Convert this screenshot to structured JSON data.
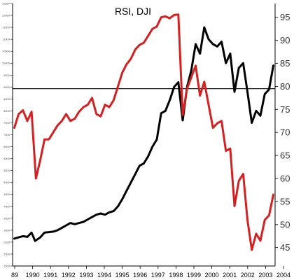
{
  "chart_data": {
    "type": "line",
    "title": "RSI, DJI",
    "x_ticks": [
      "89",
      "1990",
      "1991",
      "1992",
      "1993",
      "1994",
      "1995",
      "1996",
      "1997",
      "1998",
      "1999",
      "2000",
      "2001",
      "2002",
      "2003",
      "2004"
    ],
    "left_axis": {
      "range": [
        1500,
        12500
      ],
      "ticks": [
        1500,
        2000,
        2500,
        3000,
        3500,
        4000,
        4500,
        5000,
        5500,
        6000,
        6500,
        7000,
        7500,
        8000,
        8500,
        9000,
        9500,
        10000,
        10500,
        11000,
        11500,
        12000,
        12500
      ]
    },
    "right_axis": {
      "range": [
        41,
        98
      ],
      "ticks": [
        45,
        50,
        55,
        60,
        65,
        70,
        75,
        80,
        85,
        90,
        95
      ]
    },
    "reference_line": {
      "axis": "right",
      "value": 79.5
    },
    "series": [
      {
        "axis": "left",
        "color": "#000000",
        "points": [
          [
            1989.0,
            2650
          ],
          [
            1989.25,
            2700
          ],
          [
            1989.5,
            2750
          ],
          [
            1989.75,
            2720
          ],
          [
            1990.0,
            2900
          ],
          [
            1990.2,
            2550
          ],
          [
            1990.5,
            2700
          ],
          [
            1990.75,
            2900
          ],
          [
            1991.0,
            2920
          ],
          [
            1991.25,
            2940
          ],
          [
            1991.5,
            3000
          ],
          [
            1991.75,
            3100
          ],
          [
            1992.0,
            3200
          ],
          [
            1992.25,
            3300
          ],
          [
            1992.5,
            3250
          ],
          [
            1992.75,
            3300
          ],
          [
            1993.0,
            3350
          ],
          [
            1993.25,
            3450
          ],
          [
            1993.5,
            3550
          ],
          [
            1993.75,
            3650
          ],
          [
            1994.0,
            3700
          ],
          [
            1994.25,
            3650
          ],
          [
            1994.5,
            3750
          ],
          [
            1994.75,
            3800
          ],
          [
            1995.0,
            4000
          ],
          [
            1995.25,
            4300
          ],
          [
            1995.5,
            4650
          ],
          [
            1995.75,
            5000
          ],
          [
            1996.0,
            5350
          ],
          [
            1996.25,
            5700
          ],
          [
            1996.5,
            5800
          ],
          [
            1996.75,
            6100
          ],
          [
            1997.0,
            6500
          ],
          [
            1997.25,
            6800
          ],
          [
            1997.5,
            7900
          ],
          [
            1997.75,
            8000
          ],
          [
            1998.0,
            8450
          ],
          [
            1998.25,
            9000
          ],
          [
            1998.5,
            9200
          ],
          [
            1998.75,
            7600
          ],
          [
            1999.0,
            9000
          ],
          [
            1999.25,
            9700
          ],
          [
            1999.5,
            10800
          ],
          [
            1999.75,
            10400
          ],
          [
            2000.0,
            11500
          ],
          [
            2000.25,
            11000
          ],
          [
            2000.5,
            10800
          ],
          [
            2000.75,
            10700
          ],
          [
            2001.0,
            10900
          ],
          [
            2001.25,
            10000
          ],
          [
            2001.5,
            10400
          ],
          [
            2001.75,
            8800
          ],
          [
            2002.0,
            9800
          ],
          [
            2002.25,
            10000
          ],
          [
            2002.5,
            8800
          ],
          [
            2002.75,
            7500
          ],
          [
            2003.0,
            8000
          ],
          [
            2003.25,
            7800
          ],
          [
            2003.5,
            8700
          ],
          [
            2003.75,
            8900
          ],
          [
            2004.0,
            9900
          ]
        ]
      },
      {
        "axis": "right",
        "color": "#d42020",
        "points": [
          [
            1989.0,
            71
          ],
          [
            1989.25,
            74
          ],
          [
            1989.5,
            74.8
          ],
          [
            1989.75,
            72.5
          ],
          [
            1990.0,
            74.5
          ],
          [
            1990.25,
            60
          ],
          [
            1990.5,
            64
          ],
          [
            1990.75,
            68.5
          ],
          [
            1991.0,
            68.5
          ],
          [
            1991.5,
            71.5
          ],
          [
            1991.75,
            72.5
          ],
          [
            1992.0,
            74
          ],
          [
            1992.25,
            72.5
          ],
          [
            1992.5,
            73
          ],
          [
            1992.75,
            74.5
          ],
          [
            1993.0,
            75.5
          ],
          [
            1993.25,
            76
          ],
          [
            1993.5,
            77.5
          ],
          [
            1993.75,
            74
          ],
          [
            1994.0,
            73.5
          ],
          [
            1994.25,
            76
          ],
          [
            1994.5,
            75.5
          ],
          [
            1994.75,
            77
          ],
          [
            1995.0,
            80
          ],
          [
            1995.25,
            83
          ],
          [
            1995.5,
            84.8
          ],
          [
            1995.75,
            86
          ],
          [
            1996.0,
            88
          ],
          [
            1996.25,
            89
          ],
          [
            1996.5,
            89.5
          ],
          [
            1996.75,
            91
          ],
          [
            1997.0,
            92.5
          ],
          [
            1997.25,
            93
          ],
          [
            1997.5,
            95
          ],
          [
            1997.75,
            95.2
          ],
          [
            1998.0,
            94.8
          ],
          [
            1998.25,
            95.5
          ],
          [
            1998.5,
            95.6
          ],
          [
            1998.75,
            73.8
          ],
          [
            1999.0,
            79.5
          ],
          [
            1999.25,
            82
          ],
          [
            1999.5,
            84.5
          ],
          [
            1999.75,
            78
          ],
          [
            2000.0,
            81
          ],
          [
            2000.25,
            76
          ],
          [
            2000.5,
            71
          ],
          [
            2000.75,
            72
          ],
          [
            2001.0,
            72.5
          ],
          [
            2001.25,
            66
          ],
          [
            2001.5,
            66.5
          ],
          [
            2001.75,
            54
          ],
          [
            2002.0,
            59.5
          ],
          [
            2002.25,
            61
          ],
          [
            2002.5,
            51
          ],
          [
            2002.75,
            44.5
          ],
          [
            2003.0,
            48
          ],
          [
            2003.25,
            46.5
          ],
          [
            2003.5,
            51
          ],
          [
            2003.75,
            52
          ],
          [
            2004.0,
            56.5
          ]
        ]
      }
    ]
  }
}
